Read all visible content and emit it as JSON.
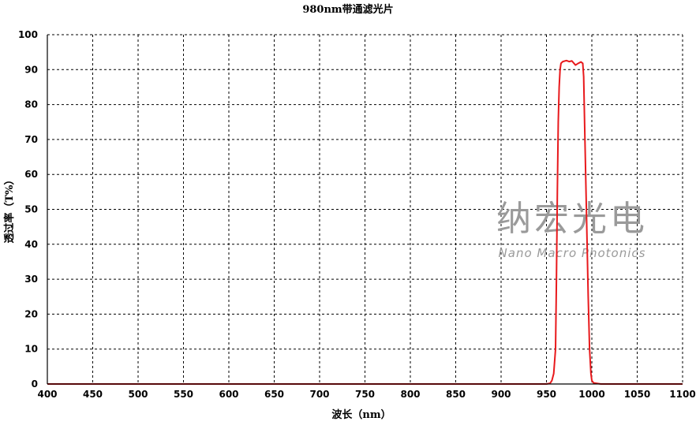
{
  "chart_data": {
    "type": "line",
    "title": "980nm带通滤光片",
    "xlabel": "波长（nm）",
    "ylabel": "透过率（T%）",
    "xlim": [
      400,
      1100
    ],
    "ylim": [
      0,
      100
    ],
    "xticks": [
      400,
      450,
      500,
      550,
      600,
      650,
      700,
      750,
      800,
      850,
      900,
      950,
      1000,
      1050,
      1100
    ],
    "yticks": [
      0,
      10,
      20,
      30,
      40,
      50,
      60,
      70,
      80,
      90,
      100
    ],
    "grid": true,
    "grid_style": "dotted",
    "series": [
      {
        "color": "#e8191c",
        "x": [
          400,
          950,
          954,
          956,
          958,
          960,
          961,
          962,
          963,
          964,
          965,
          966,
          968,
          972,
          975,
          978,
          982,
          985,
          988,
          990,
          991,
          992,
          994,
          996,
          997.5,
          999,
          1000,
          1002,
          1010,
          1100
        ],
        "y": [
          0,
          0,
          0.2,
          1,
          3,
          10,
          30,
          55,
          75,
          85,
          90,
          91.8,
          92.3,
          92.6,
          92.3,
          92.5,
          91.3,
          91.8,
          92.2,
          91.8,
          88,
          75,
          50,
          25,
          10,
          3,
          1,
          0.3,
          0,
          0
        ]
      }
    ],
    "watermark": {
      "cn": "纳宏光电",
      "en": "Nano Macro Photonics"
    }
  }
}
